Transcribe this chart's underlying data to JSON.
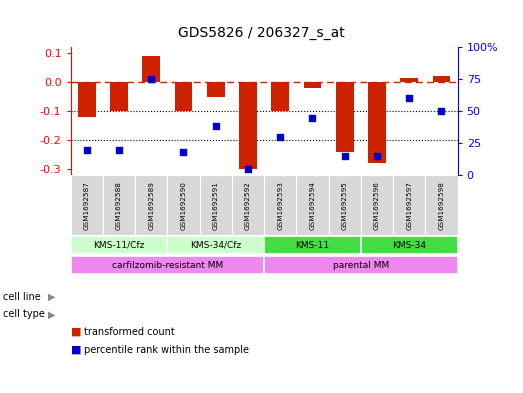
{
  "title": "GDS5826 / 206327_s_at",
  "samples": [
    "GSM1692587",
    "GSM1692588",
    "GSM1692589",
    "GSM1692590",
    "GSM1692591",
    "GSM1692592",
    "GSM1692593",
    "GSM1692594",
    "GSM1692595",
    "GSM1692596",
    "GSM1692597",
    "GSM1692598"
  ],
  "bar_values": [
    -0.12,
    -0.1,
    0.09,
    -0.1,
    -0.05,
    -0.3,
    -0.1,
    -0.02,
    -0.24,
    -0.28,
    0.015,
    0.02
  ],
  "blue_values": [
    20,
    20,
    75,
    18,
    38,
    5,
    30,
    45,
    15,
    15,
    60,
    50
  ],
  "bar_color": "#cc2200",
  "blue_color": "#0000cc",
  "dashed_line_color": "#cc2200",
  "ylim": [
    -0.32,
    0.12
  ],
  "yticks": [
    0.1,
    0.0,
    -0.1,
    -0.2,
    -0.3
  ],
  "right_yticks": [
    100,
    75,
    50,
    25,
    0
  ],
  "grid_dotted": [
    -0.1,
    -0.2
  ],
  "background_color": "#ffffff",
  "bar_width": 0.55,
  "cell_line_defs": [
    {
      "label": "KMS-11/Cfz",
      "start": 0,
      "end": 3,
      "color": "#ccffcc"
    },
    {
      "label": "KMS-34/Cfz",
      "start": 3,
      "end": 6,
      "color": "#ccffcc"
    },
    {
      "label": "KMS-11",
      "start": 6,
      "end": 9,
      "color": "#44dd44"
    },
    {
      "label": "KMS-34",
      "start": 9,
      "end": 12,
      "color": "#44dd44"
    }
  ],
  "cell_type_defs": [
    {
      "label": "carfilzomib-resistant MM",
      "start": 0,
      "end": 6,
      "color": "#ee88ee"
    },
    {
      "label": "parental MM",
      "start": 6,
      "end": 12,
      "color": "#ee88ee"
    }
  ]
}
